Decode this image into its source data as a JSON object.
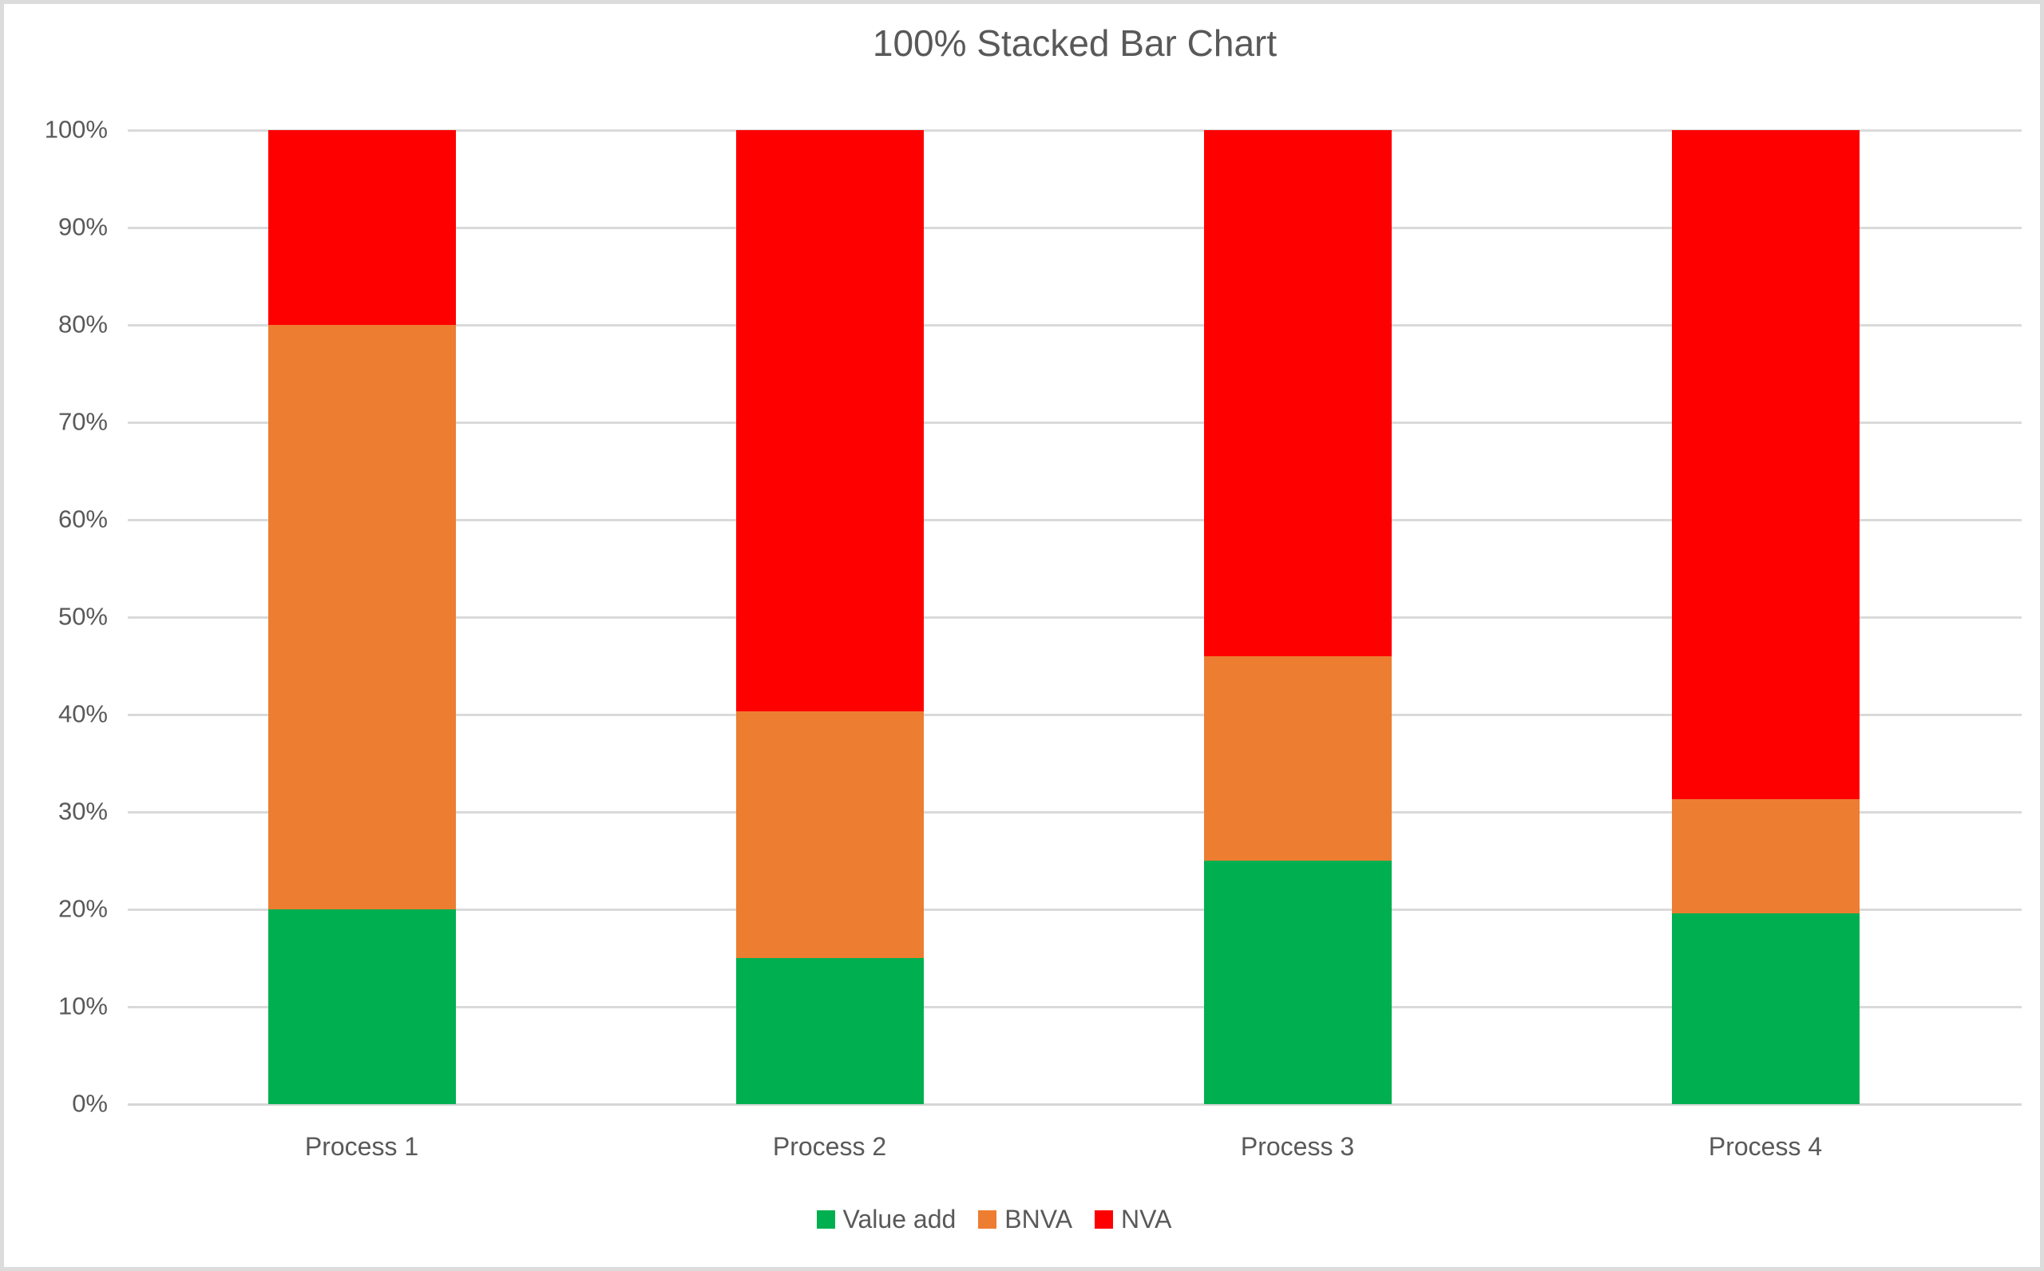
{
  "frame": {
    "background": "#FFFFFF",
    "border_color": "#DCDCDC"
  },
  "text_color": "#595959",
  "chart_data": {
    "type": "bar",
    "stacked": true,
    "percent_stacked": true,
    "title": "100% Stacked Bar Chart",
    "xlabel": "",
    "ylabel": "",
    "categories": [
      "Process 1",
      "Process 2",
      "Process 3",
      "Process 4"
    ],
    "series": [
      {
        "name": "Value add",
        "color": "#00AF50",
        "values": [
          20.0,
          15.0,
          25.0,
          19.6
        ]
      },
      {
        "name": "BNVA",
        "color": "#ED7D31",
        "values": [
          60.0,
          25.3,
          21.0,
          11.7
        ]
      },
      {
        "name": "NVA",
        "color": "#FF0000",
        "values": [
          20.0,
          59.7,
          54.0,
          68.7
        ]
      }
    ],
    "y_axis": {
      "min": 0,
      "max": 100,
      "tick_step": 10,
      "tick_labels": [
        "0%",
        "10%",
        "20%",
        "30%",
        "40%",
        "50%",
        "60%",
        "70%",
        "80%",
        "90%",
        "100%"
      ]
    },
    "grid": true,
    "gridline_color": "#DADADA",
    "axis_line_color": "#D6D6D6",
    "legend": {
      "position": "bottom",
      "entries": [
        "Value add",
        "BNVA",
        "NVA"
      ]
    }
  }
}
